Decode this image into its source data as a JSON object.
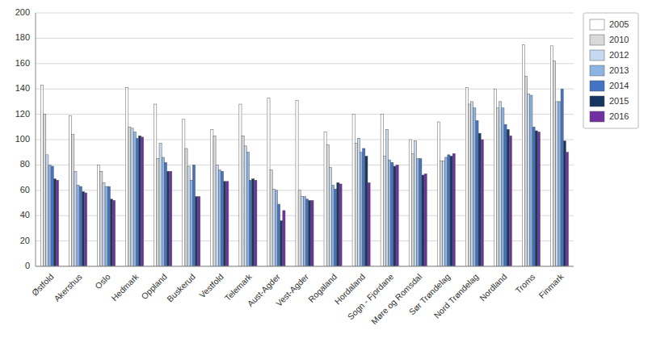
{
  "chart_data": {
    "type": "bar",
    "categories": [
      "Østfold",
      "Akershus",
      "Oslo",
      "Hedmark",
      "Oppland",
      "Buskerud",
      "Vestfold",
      "Telemark",
      "Aust-Agder",
      "Vest-Agder",
      "Rogaland",
      "Hordaland",
      "Sogn - Fjordane",
      "Møre og Romsdal",
      "Sør Trøndelag",
      "Nord Trøndelag",
      "Nordland",
      "Troms",
      "Finmark"
    ],
    "series": [
      {
        "name": "2005",
        "color": "#FFFFFF",
        "values": [
          143,
          119,
          80,
          141,
          128,
          116,
          108,
          128,
          133,
          131,
          106,
          120,
          120,
          100,
          114,
          141,
          140,
          175,
          174
        ]
      },
      {
        "name": "2010",
        "color": "#D9D9D9",
        "values": [
          120,
          104,
          75,
          110,
          85,
          93,
          103,
          103,
          76,
          60,
          96,
          97,
          87,
          89,
          83,
          128,
          125,
          150,
          162
        ]
      },
      {
        "name": "2012",
        "color": "#C5D9F1",
        "values": [
          88,
          75,
          66,
          109,
          97,
          79,
          80,
          95,
          61,
          55,
          78,
          101,
          108,
          99,
          83,
          130,
          130,
          136,
          130
        ]
      },
      {
        "name": "2013",
        "color": "#8DB4E2",
        "values": [
          80,
          64,
          63,
          106,
          86,
          68,
          76,
          90,
          60,
          55,
          64,
          90,
          84,
          85,
          86,
          125,
          125,
          135,
          130
        ]
      },
      {
        "name": "2014",
        "color": "#4472C4",
        "values": [
          79,
          63,
          63,
          101,
          82,
          80,
          75,
          68,
          49,
          53,
          61,
          93,
          82,
          85,
          88,
          115,
          112,
          110,
          140
        ]
      },
      {
        "name": "2015",
        "color": "#17375E",
        "values": [
          69,
          59,
          53,
          103,
          75,
          55,
          67,
          69,
          36,
          52,
          66,
          87,
          79,
          72,
          87,
          105,
          108,
          107,
          99
        ]
      },
      {
        "name": "2016",
        "color": "#7030A0",
        "values": [
          68,
          58,
          52,
          102,
          75,
          55,
          67,
          68,
          44,
          52,
          65,
          66,
          80,
          73,
          89,
          100,
          103,
          106,
          90
        ]
      }
    ],
    "ylim": [
      0,
      200
    ],
    "yticks": [
      0,
      20,
      40,
      60,
      80,
      100,
      120,
      140,
      160,
      180,
      200
    ],
    "grid": true,
    "legend": "right"
  }
}
